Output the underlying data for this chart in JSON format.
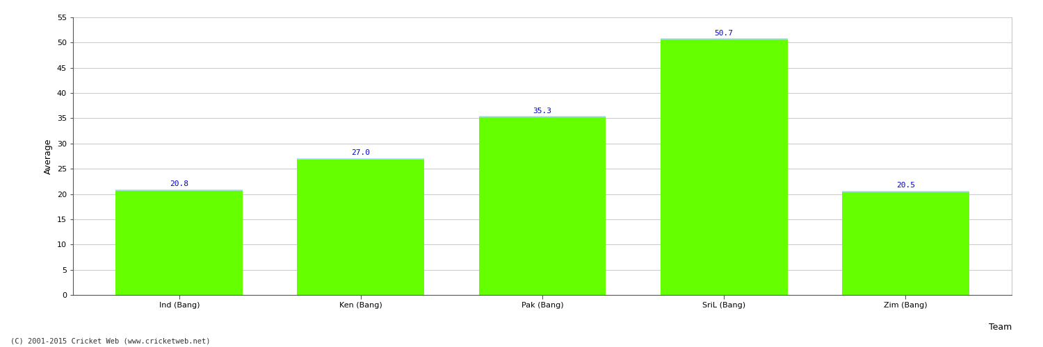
{
  "categories": [
    "Ind (Bang)",
    "Ken (Bang)",
    "Pak (Bang)",
    "SriL (Bang)",
    "Zim (Bang)"
  ],
  "values": [
    20.8,
    27.0,
    35.3,
    50.7,
    20.5
  ],
  "bar_color": "#66ff00",
  "bar_edge_color": "#66ff00",
  "bar_top_edge_color": "#aaddff",
  "label_color": "#0000cc",
  "xlabel": "Team",
  "ylabel": "Average",
  "ylim": [
    0,
    55
  ],
  "yticks": [
    0,
    5,
    10,
    15,
    20,
    25,
    30,
    35,
    40,
    45,
    50,
    55
  ],
  "grid_color": "#cccccc",
  "background_color": "#ffffff",
  "label_fontsize": 8,
  "axis_fontsize": 9,
  "footer": "(C) 2001-2015 Cricket Web (www.cricketweb.net)"
}
